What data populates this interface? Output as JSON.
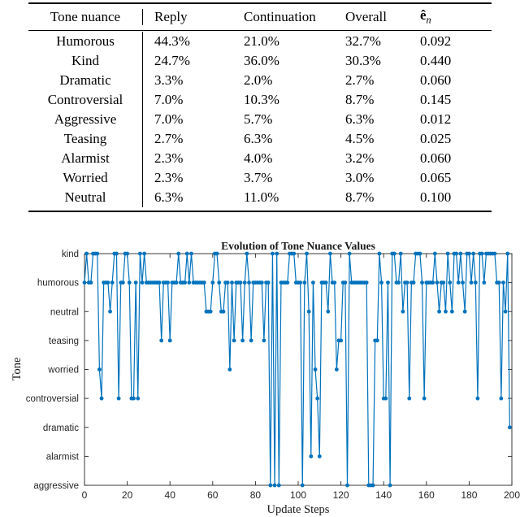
{
  "table": {
    "headers": {
      "tone": "Tone nuance",
      "reply": "Reply",
      "continuation": "Continuation",
      "overall": "Overall",
      "error_main": "ê",
      "error_sub": "n"
    },
    "rows": [
      {
        "tone": "Humorous",
        "reply": "44.3%",
        "continuation": "21.0%",
        "overall": "32.7%",
        "error": "0.092"
      },
      {
        "tone": "Kind",
        "reply": "24.7%",
        "continuation": "36.0%",
        "overall": "30.3%",
        "error": "0.440"
      },
      {
        "tone": "Dramatic",
        "reply": "3.3%",
        "continuation": "2.0%",
        "overall": "2.7%",
        "error": "0.060"
      },
      {
        "tone": "Controversial",
        "reply": "7.0%",
        "continuation": "10.3%",
        "overall": "8.7%",
        "error": "0.145"
      },
      {
        "tone": "Aggressive",
        "reply": "7.0%",
        "continuation": "5.7%",
        "overall": "6.3%",
        "error": "0.012"
      },
      {
        "tone": "Teasing",
        "reply": "2.7%",
        "continuation": "6.3%",
        "overall": "4.5%",
        "error": "0.025"
      },
      {
        "tone": "Alarmist",
        "reply": "2.3%",
        "continuation": "4.0%",
        "overall": "3.2%",
        "error": "0.060"
      },
      {
        "tone": "Worried",
        "reply": "2.3%",
        "continuation": "3.7%",
        "overall": "3.0%",
        "error": "0.065"
      },
      {
        "tone": "Neutral",
        "reply": "6.3%",
        "continuation": "11.0%",
        "overall": "8.7%",
        "error": "0.100"
      }
    ]
  },
  "chart_data": {
    "type": "line",
    "title": "Evolution of Tone Nuance Values",
    "xlabel": "Update Steps",
    "ylabel": "Tone",
    "categories_bottom_to_top": [
      "aggressive",
      "alarmist",
      "dramatic",
      "controversial",
      "worried",
      "teasing",
      "neutral",
      "humorous",
      "kind"
    ],
    "x_ticks": [
      0,
      20,
      40,
      60,
      80,
      100,
      120,
      140,
      160,
      180,
      200
    ],
    "xlim": [
      0,
      200
    ],
    "line_color": "#0072BD",
    "marker": "filled-circle",
    "values": [
      "humorous",
      "kind",
      "humorous",
      "humorous",
      "kind",
      "kind",
      "kind",
      "worried",
      "controversial",
      "humorous",
      "humorous",
      "humorous",
      "neutral",
      "humorous",
      "kind",
      "kind",
      "controversial",
      "humorous",
      "humorous",
      "kind",
      "kind",
      "humorous",
      "controversial",
      "controversial",
      "humorous",
      "controversial",
      "kind",
      "humorous",
      "kind",
      "humorous",
      "humorous",
      "humorous",
      "humorous",
      "humorous",
      "humorous",
      "humorous",
      "teasing",
      "humorous",
      "humorous",
      "humorous",
      "teasing",
      "humorous",
      "humorous",
      "humorous",
      "kind",
      "humorous",
      "humorous",
      "humorous",
      "kind",
      "humorous",
      "kind",
      "humorous",
      "humorous",
      "humorous",
      "humorous",
      "humorous",
      "humorous",
      "neutral",
      "neutral",
      "neutral",
      "humorous",
      "kind",
      "kind",
      "humorous",
      "neutral",
      "neutral",
      "humorous",
      "humorous",
      "worried",
      "humorous",
      "teasing",
      "humorous",
      "humorous",
      "humorous",
      "teasing",
      "humorous",
      "kind",
      "humorous",
      "teasing",
      "humorous",
      "humorous",
      "humorous",
      "humorous",
      "humorous",
      "teasing",
      "humorous",
      "humorous",
      "aggressive",
      "kind",
      "aggressive",
      "kind",
      "aggressive",
      "humorous",
      "humorous",
      "humorous",
      "humorous",
      "kind",
      "kind",
      "kind",
      "humorous",
      "humorous",
      "humorous",
      "aggressive",
      "humorous",
      "kind",
      "neutral",
      "alarmist",
      "humorous",
      "worried",
      "controversial",
      "alarmist",
      "humorous",
      "humorous",
      "humorous",
      "neutral",
      "kind",
      "humorous",
      "humorous",
      "worried",
      "teasing",
      "teasing",
      "humorous",
      "humorous",
      "aggressive",
      "kind",
      "humorous",
      "humorous",
      "humorous",
      "humorous",
      "humorous",
      "humorous",
      "humorous",
      "humorous",
      "aggressive",
      "aggressive",
      "aggressive",
      "teasing",
      "teasing",
      "kind",
      "humorous",
      "controversial",
      "controversial",
      "humorous",
      "aggressive",
      "kind",
      "kind",
      "humorous",
      "humorous",
      "kind",
      "neutral",
      "humorous",
      "humorous",
      "controversial",
      "humorous",
      "humorous",
      "kind",
      "kind",
      "kind",
      "humorous",
      "controversial",
      "humorous",
      "humorous",
      "humorous",
      "humorous",
      "kind",
      "humorous",
      "neutral",
      "humorous",
      "humorous",
      "neutral",
      "kind",
      "humorous",
      "neutral",
      "kind",
      "kind",
      "humorous",
      "kind",
      "humorous",
      "neutral",
      "kind",
      "kind",
      "humorous",
      "kind",
      "humorous",
      "controversial",
      "kind",
      "kind",
      "humorous",
      "kind",
      "kind",
      "kind",
      "kind",
      "kind",
      "humorous",
      "humorous",
      "controversial",
      "humorous",
      "neutral",
      "kind",
      "dramatic"
    ]
  }
}
